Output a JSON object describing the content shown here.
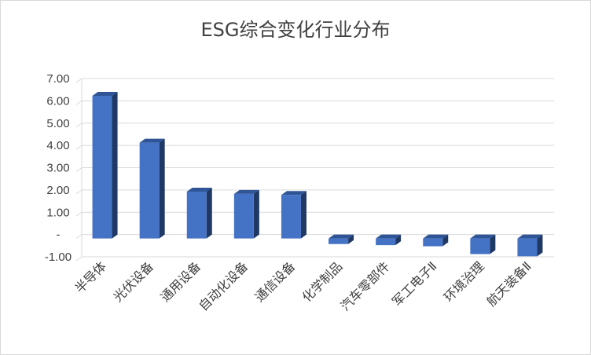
{
  "chart_data": {
    "type": "bar",
    "title": "ESG综合变化行业分布",
    "categories": [
      "半导体",
      "光伏设备",
      "通用设备",
      "自动化设备",
      "通信设备",
      "化学制品",
      "汽车零部件",
      "军工电子Ⅱ",
      "环境治理",
      "航天装备Ⅱ"
    ],
    "values": [
      6.4,
      4.3,
      2.1,
      2.0,
      1.95,
      -0.25,
      -0.3,
      -0.35,
      -0.7,
      -0.8
    ],
    "ylim": [
      -1,
      7
    ],
    "yticks": [
      7,
      6,
      5,
      4,
      3,
      2,
      1,
      0,
      -1
    ],
    "ytick_labels": [
      "7.00",
      "6.00",
      "5.00",
      "4.00",
      "3.00",
      "2.00",
      "1.00",
      "-",
      "-1.00"
    ],
    "grid": true,
    "bar_color": "#4472c4",
    "bar_top_color": "#2f5597",
    "bar_side_color": "#1f3864",
    "axis_color": "#d9d9d9"
  }
}
